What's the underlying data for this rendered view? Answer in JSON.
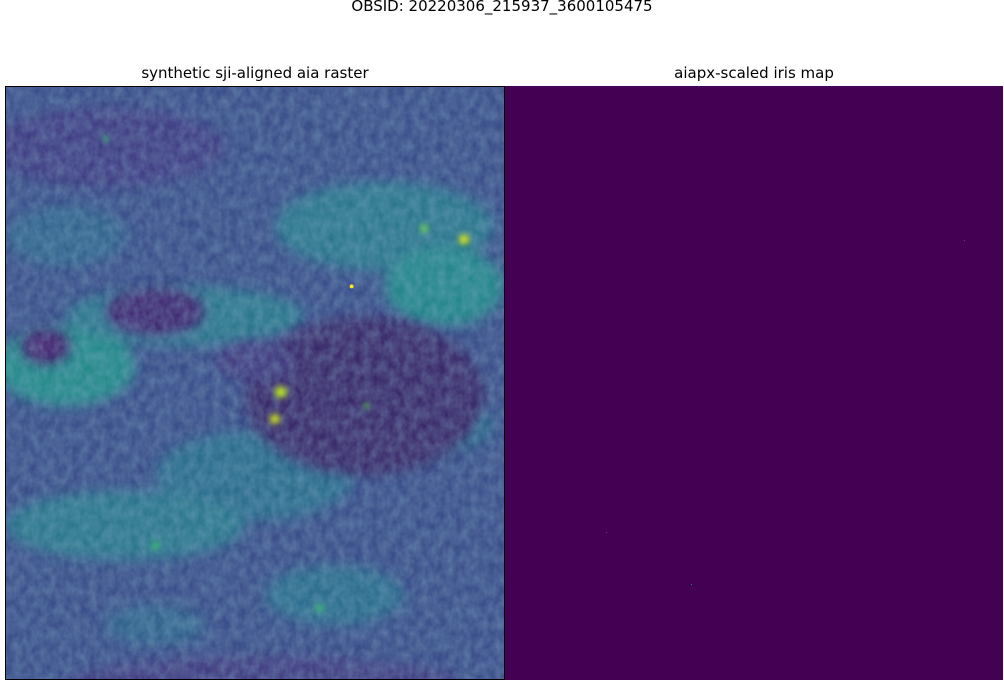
{
  "figure": {
    "suptitle": "OBSID: 20220306_215937_3600105475"
  },
  "panels": [
    {
      "title": "synthetic sji-aligned aia raster",
      "colormap": "viridis",
      "background_color": "#3b4f8a"
    },
    {
      "title": "aiapx-scaled iris map",
      "colormap": "viridis",
      "background_color": "#440154"
    }
  ]
}
